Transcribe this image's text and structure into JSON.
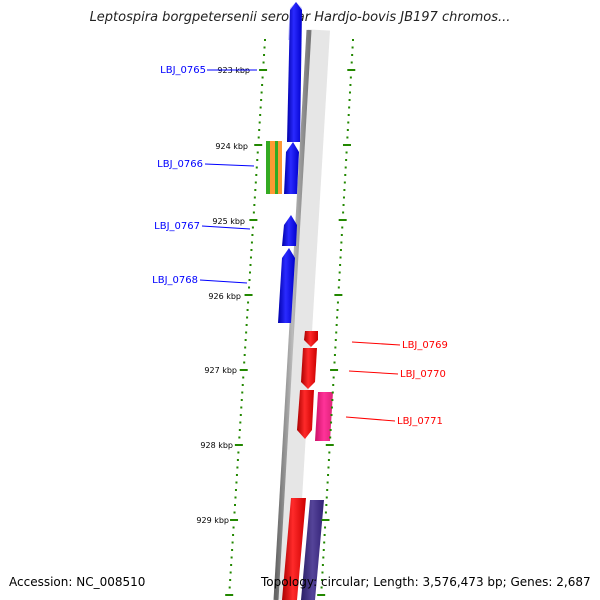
{
  "title": "Leptospira borgpetersenii serovar Hardjo-bovis JB197 chromos...",
  "footer": {
    "accession": "Accession: NC_008510",
    "topology": "Topology: circular; Length: 3,576,473 bp; Genes: 2,687"
  },
  "ticks": [
    "923 kbp",
    "924 kbp",
    "925 kbp",
    "926 kbp",
    "927 kbp",
    "928 kbp",
    "929 kbp"
  ],
  "genes_forward": [
    {
      "label": "LBJ_0765",
      "color": "#0000ff"
    },
    {
      "label": "LBJ_0766",
      "color": "#0000ff"
    },
    {
      "label": "LBJ_0767",
      "color": "#0000ff"
    },
    {
      "label": "LBJ_0768",
      "color": "#0000ff"
    }
  ],
  "genes_reverse": [
    {
      "label": "LBJ_0769",
      "color": "#ff0000"
    },
    {
      "label": "LBJ_0770",
      "color": "#ff0000"
    },
    {
      "label": "LBJ_0771",
      "color": "#ff0000"
    }
  ],
  "colors": {
    "forward": "#0000ff",
    "reverse": "#ff0000",
    "pink": "#ff3399",
    "purple": "#443388",
    "green": "#33aa22",
    "orange": "#ff9933",
    "tick": "#228800",
    "backbone": "#888888"
  }
}
